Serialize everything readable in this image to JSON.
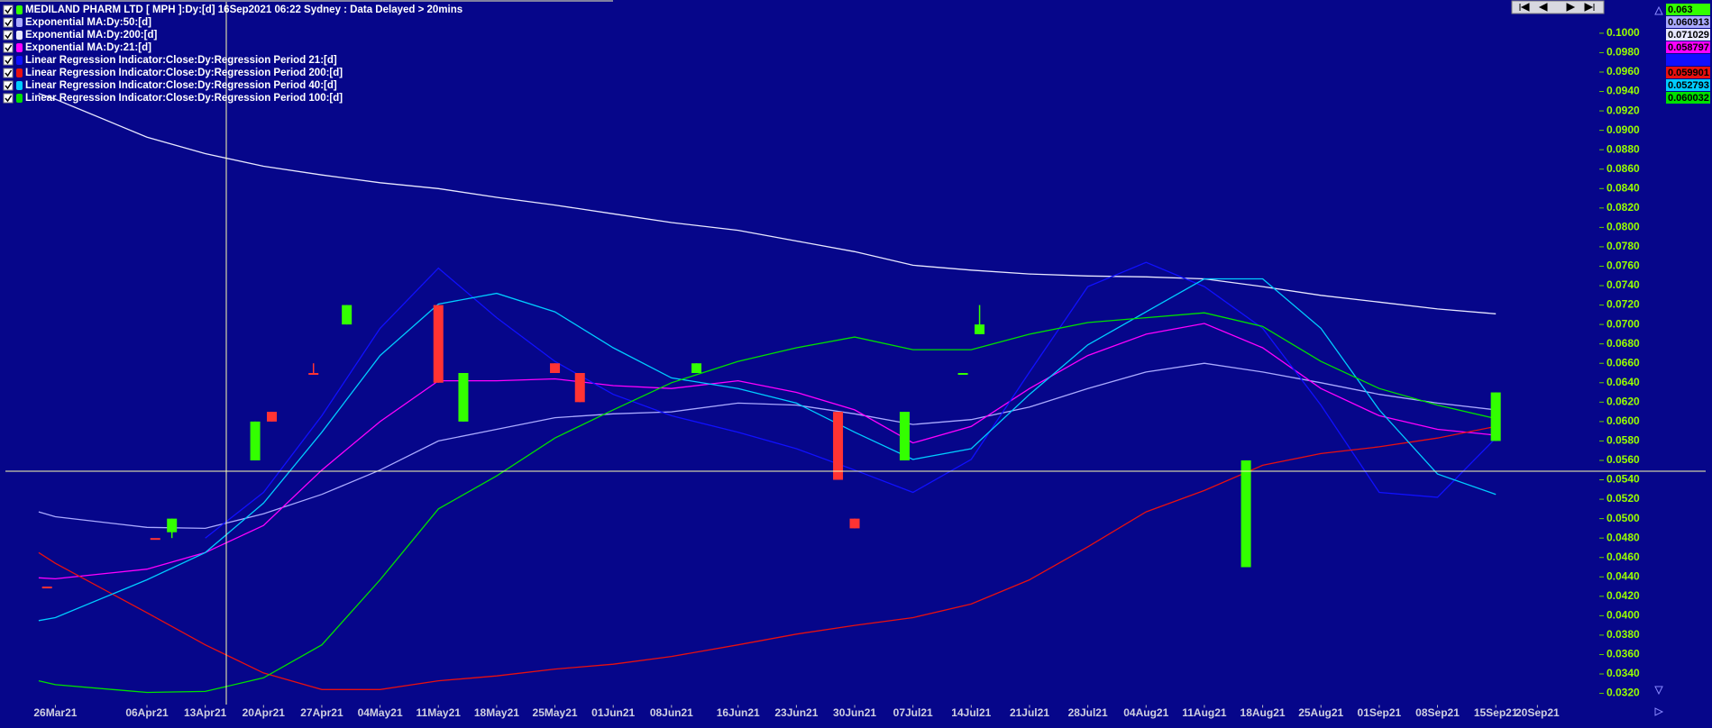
{
  "chart_data": {
    "type": "candlestick",
    "title": "MEDILAND PHARM LTD [ MPH ]:Dy:[d]  16Sep2021 06:22 Sydney : Data Delayed > 20mins",
    "xlim": [
      "2021-03-20",
      "2021-09-27"
    ],
    "ylim": [
      0.0308,
      0.1032
    ],
    "xticks": [
      {
        "value": "2021-03-26",
        "label": "26Mar21"
      },
      {
        "value": "2021-04-06",
        "label": "06Apr21"
      },
      {
        "value": "2021-04-13",
        "label": "13Apr21"
      },
      {
        "value": "2021-04-20",
        "label": "20Apr21"
      },
      {
        "value": "2021-04-27",
        "label": "27Apr21"
      },
      {
        "value": "2021-05-04",
        "label": "04May21"
      },
      {
        "value": "2021-05-11",
        "label": "11May21"
      },
      {
        "value": "2021-05-18",
        "label": "18May21"
      },
      {
        "value": "2021-05-25",
        "label": "25May21"
      },
      {
        "value": "2021-06-01",
        "label": "01Jun21"
      },
      {
        "value": "2021-06-08",
        "label": "08Jun21"
      },
      {
        "value": "2021-06-16",
        "label": "16Jun21"
      },
      {
        "value": "2021-06-23",
        "label": "23Jun21"
      },
      {
        "value": "2021-06-30",
        "label": "30Jun21"
      },
      {
        "value": "2021-07-07",
        "label": "07Jul21"
      },
      {
        "value": "2021-07-14",
        "label": "14Jul21"
      },
      {
        "value": "2021-07-21",
        "label": "21Jul21"
      },
      {
        "value": "2021-07-28",
        "label": "28Jul21"
      },
      {
        "value": "2021-08-04",
        "label": "04Aug21"
      },
      {
        "value": "2021-08-11",
        "label": "11Aug21"
      },
      {
        "value": "2021-08-18",
        "label": "18Aug21"
      },
      {
        "value": "2021-08-25",
        "label": "25Aug21"
      },
      {
        "value": "2021-09-01",
        "label": "01Sep21"
      },
      {
        "value": "2021-09-08",
        "label": "08Sep21"
      },
      {
        "value": "2021-09-15",
        "label": "15Sep21"
      },
      {
        "value": "2021-09-20",
        "label": "20Sep21"
      }
    ],
    "yticks": [
      {
        "value": 0.032,
        "label": "0.0320"
      },
      {
        "value": 0.034,
        "label": "0.0340"
      },
      {
        "value": 0.036,
        "label": "0.0360"
      },
      {
        "value": 0.038,
        "label": "0.0380"
      },
      {
        "value": 0.04,
        "label": "0.0400"
      },
      {
        "value": 0.042,
        "label": "0.0420"
      },
      {
        "value": 0.044,
        "label": "0.0440"
      },
      {
        "value": 0.046,
        "label": "0.0460"
      },
      {
        "value": 0.048,
        "label": "0.0480"
      },
      {
        "value": 0.05,
        "label": "0.0500"
      },
      {
        "value": 0.052,
        "label": "0.0520"
      },
      {
        "value": 0.054,
        "label": "0.0540"
      },
      {
        "value": 0.056,
        "label": "0.0560"
      },
      {
        "value": 0.058,
        "label": "0.0580"
      },
      {
        "value": 0.06,
        "label": "0.0600"
      },
      {
        "value": 0.062,
        "label": "0.0620"
      },
      {
        "value": 0.064,
        "label": "0.0640"
      },
      {
        "value": 0.066,
        "label": "0.0660"
      },
      {
        "value": 0.068,
        "label": "0.0680"
      },
      {
        "value": 0.07,
        "label": "0.0700"
      },
      {
        "value": 0.072,
        "label": "0.0720"
      },
      {
        "value": 0.074,
        "label": "0.0740"
      },
      {
        "value": 0.076,
        "label": "0.0760"
      },
      {
        "value": 0.078,
        "label": "0.0780"
      },
      {
        "value": 0.08,
        "label": "0.0800"
      },
      {
        "value": 0.082,
        "label": "0.0820"
      },
      {
        "value": 0.084,
        "label": "0.0840"
      },
      {
        "value": 0.086,
        "label": "0.0860"
      },
      {
        "value": 0.088,
        "label": "0.0880"
      },
      {
        "value": 0.09,
        "label": "0.0900"
      },
      {
        "value": 0.092,
        "label": "0.0920"
      },
      {
        "value": 0.094,
        "label": "0.0940"
      },
      {
        "value": 0.096,
        "label": "0.0960"
      },
      {
        "value": 0.098,
        "label": "0.0980"
      },
      {
        "value": 0.1,
        "label": "0.1000"
      }
    ],
    "candles": {
      "color": "#33ff00",
      "last_label": "0.063",
      "dates": [
        "2021-03-25",
        "2021-04-07",
        "2021-04-09",
        "2021-04-19",
        "2021-04-21",
        "2021-04-26",
        "2021-04-30",
        "2021-05-11",
        "2021-05-14",
        "2021-05-25",
        "2021-05-28",
        "2021-06-11",
        "2021-06-28",
        "2021-06-30",
        "2021-07-06",
        "2021-07-13",
        "2021-07-15",
        "2021-08-16",
        "2021-09-15"
      ],
      "colors": [
        "#ff3333",
        "#ff3333",
        "#33ff00",
        "#33ff00",
        "#ff3333",
        "#ff3333",
        "#33ff00",
        "#ff3333",
        "#33ff00",
        "#ff3333",
        "#ff3333",
        "#33ff00",
        "#ff3333",
        "#ff3333",
        "#33ff00",
        "#33ff00",
        "#33ff00",
        "#33ff00",
        "#33ff00"
      ],
      "open": [
        0.043,
        0.048,
        0.0486,
        0.056,
        0.061,
        0.065,
        0.07,
        0.072,
        0.06,
        0.066,
        0.065,
        0.065,
        0.061,
        0.05,
        0.056,
        0.065,
        0.069,
        0.045,
        0.058
      ],
      "high": [
        0.043,
        0.048,
        0.05,
        0.06,
        0.061,
        0.066,
        0.072,
        0.072,
        0.065,
        0.066,
        0.065,
        0.066,
        0.061,
        0.05,
        0.061,
        0.065,
        0.072,
        0.056,
        0.063
      ],
      "low": [
        0.043,
        0.048,
        0.048,
        0.056,
        0.06,
        0.065,
        0.07,
        0.064,
        0.06,
        0.065,
        0.062,
        0.065,
        0.054,
        0.049,
        0.056,
        0.065,
        0.069,
        0.045,
        0.058
      ],
      "close": [
        0.043,
        0.048,
        0.05,
        0.06,
        0.06,
        0.065,
        0.072,
        0.064,
        0.065,
        0.065,
        0.062,
        0.066,
        0.054,
        0.049,
        0.061,
        0.065,
        0.07,
        0.056,
        0.063
      ]
    },
    "x": [
      "2021-03-24",
      "2021-03-26",
      "2021-04-06",
      "2021-04-13",
      "2021-04-20",
      "2021-04-27",
      "2021-05-04",
      "2021-05-11",
      "2021-05-18",
      "2021-05-25",
      "2021-06-01",
      "2021-06-08",
      "2021-06-16",
      "2021-06-23",
      "2021-06-30",
      "2021-07-07",
      "2021-07-14",
      "2021-07-21",
      "2021-07-28",
      "2021-08-04",
      "2021-08-11",
      "2021-08-18",
      "2021-08-25",
      "2021-09-01",
      "2021-09-08",
      "2021-09-15"
    ],
    "series": [
      {
        "name": "Exponential MA:Dy:50:[d]",
        "color": "#aaaaff",
        "last_label": "0.060913",
        "values": [
          0.0507,
          0.0502,
          0.0491,
          0.049,
          0.0505,
          0.0525,
          0.055,
          0.058,
          0.0592,
          0.0604,
          0.0608,
          0.061,
          0.0619,
          0.0617,
          0.0608,
          0.0597,
          0.0602,
          0.0615,
          0.0634,
          0.0651,
          0.066,
          0.0651,
          0.064,
          0.0628,
          0.0619,
          0.0612
        ]
      },
      {
        "name": "Exponential MA:Dy:200:[d]",
        "color": "#e8e8ff",
        "last_label": "0.071029",
        "values": [
          0.0938,
          0.0932,
          0.0893,
          0.0876,
          0.0863,
          0.0854,
          0.0846,
          0.084,
          0.0831,
          0.0823,
          0.0814,
          0.0805,
          0.0797,
          0.0786,
          0.0775,
          0.0761,
          0.0756,
          0.0752,
          0.075,
          0.0749,
          0.0747,
          0.0739,
          0.073,
          0.0723,
          0.0716,
          0.0711
        ]
      },
      {
        "name": "Exponential MA:Dy:21:[d]",
        "color": "#ff00ff",
        "last_label": "0.058797",
        "values": [
          0.0439,
          0.0438,
          0.0448,
          0.0465,
          0.0493,
          0.055,
          0.06,
          0.0642,
          0.0642,
          0.0644,
          0.0637,
          0.0634,
          0.0642,
          0.063,
          0.0612,
          0.0578,
          0.0595,
          0.0634,
          0.0668,
          0.069,
          0.0701,
          0.0676,
          0.0634,
          0.0606,
          0.0592,
          0.0586
        ]
      },
      {
        "name": "Linear Regression Indicator:Close:Dy:Regression Period 21:[d]",
        "color": "#1010ff",
        "values": [
          null,
          null,
          null,
          0.048,
          0.0527,
          0.0606,
          0.0696,
          0.0758,
          0.0707,
          0.0662,
          0.0628,
          0.0606,
          0.0589,
          0.0572,
          0.055,
          0.0527,
          0.0561,
          0.0651,
          0.0739,
          0.0764,
          0.0739,
          0.0696,
          0.0617,
          0.0527,
          0.0522,
          0.0583
        ]
      },
      {
        "name": "Linear Regression Indicator:Close:Dy:Regression Period 200:[d]",
        "color": "#e81010",
        "last_label": "0.059901",
        "values": [
          0.0465,
          0.0454,
          0.0403,
          0.037,
          0.0341,
          0.0324,
          0.0324,
          0.0333,
          0.0338,
          0.0345,
          0.035,
          0.0358,
          0.037,
          0.0381,
          0.039,
          0.0398,
          0.0412,
          0.0437,
          0.0471,
          0.0507,
          0.0529,
          0.0555,
          0.0567,
          0.0574,
          0.0583,
          0.0595
        ]
      },
      {
        "name": "Linear Regression Indicator:Close:Dy:Regression Period 40:[d]",
        "color": "#00ccff",
        "last_label": "0.052793",
        "values": [
          0.0395,
          0.0398,
          0.0437,
          0.0465,
          0.0516,
          0.0589,
          0.0668,
          0.0721,
          0.0732,
          0.0713,
          0.0676,
          0.0645,
          0.0634,
          0.0619,
          0.0589,
          0.0561,
          0.0572,
          0.0628,
          0.0679,
          0.0713,
          0.0747,
          0.0747,
          0.0696,
          0.0612,
          0.0546,
          0.0525
        ]
      },
      {
        "name": "Linear Regression Indicator:Close:Dy:Regression Period 100:[d]",
        "color": "#00e000",
        "last_label": "0.060032",
        "values": [
          0.0333,
          0.0329,
          0.0321,
          0.0322,
          0.0336,
          0.037,
          0.0437,
          0.051,
          0.0544,
          0.0583,
          0.0612,
          0.064,
          0.0662,
          0.0676,
          0.0687,
          0.0674,
          0.0674,
          0.069,
          0.0702,
          0.0707,
          0.0712,
          0.0698,
          0.0662,
          0.0634,
          0.0617,
          0.0603
        ]
      }
    ]
  }
}
